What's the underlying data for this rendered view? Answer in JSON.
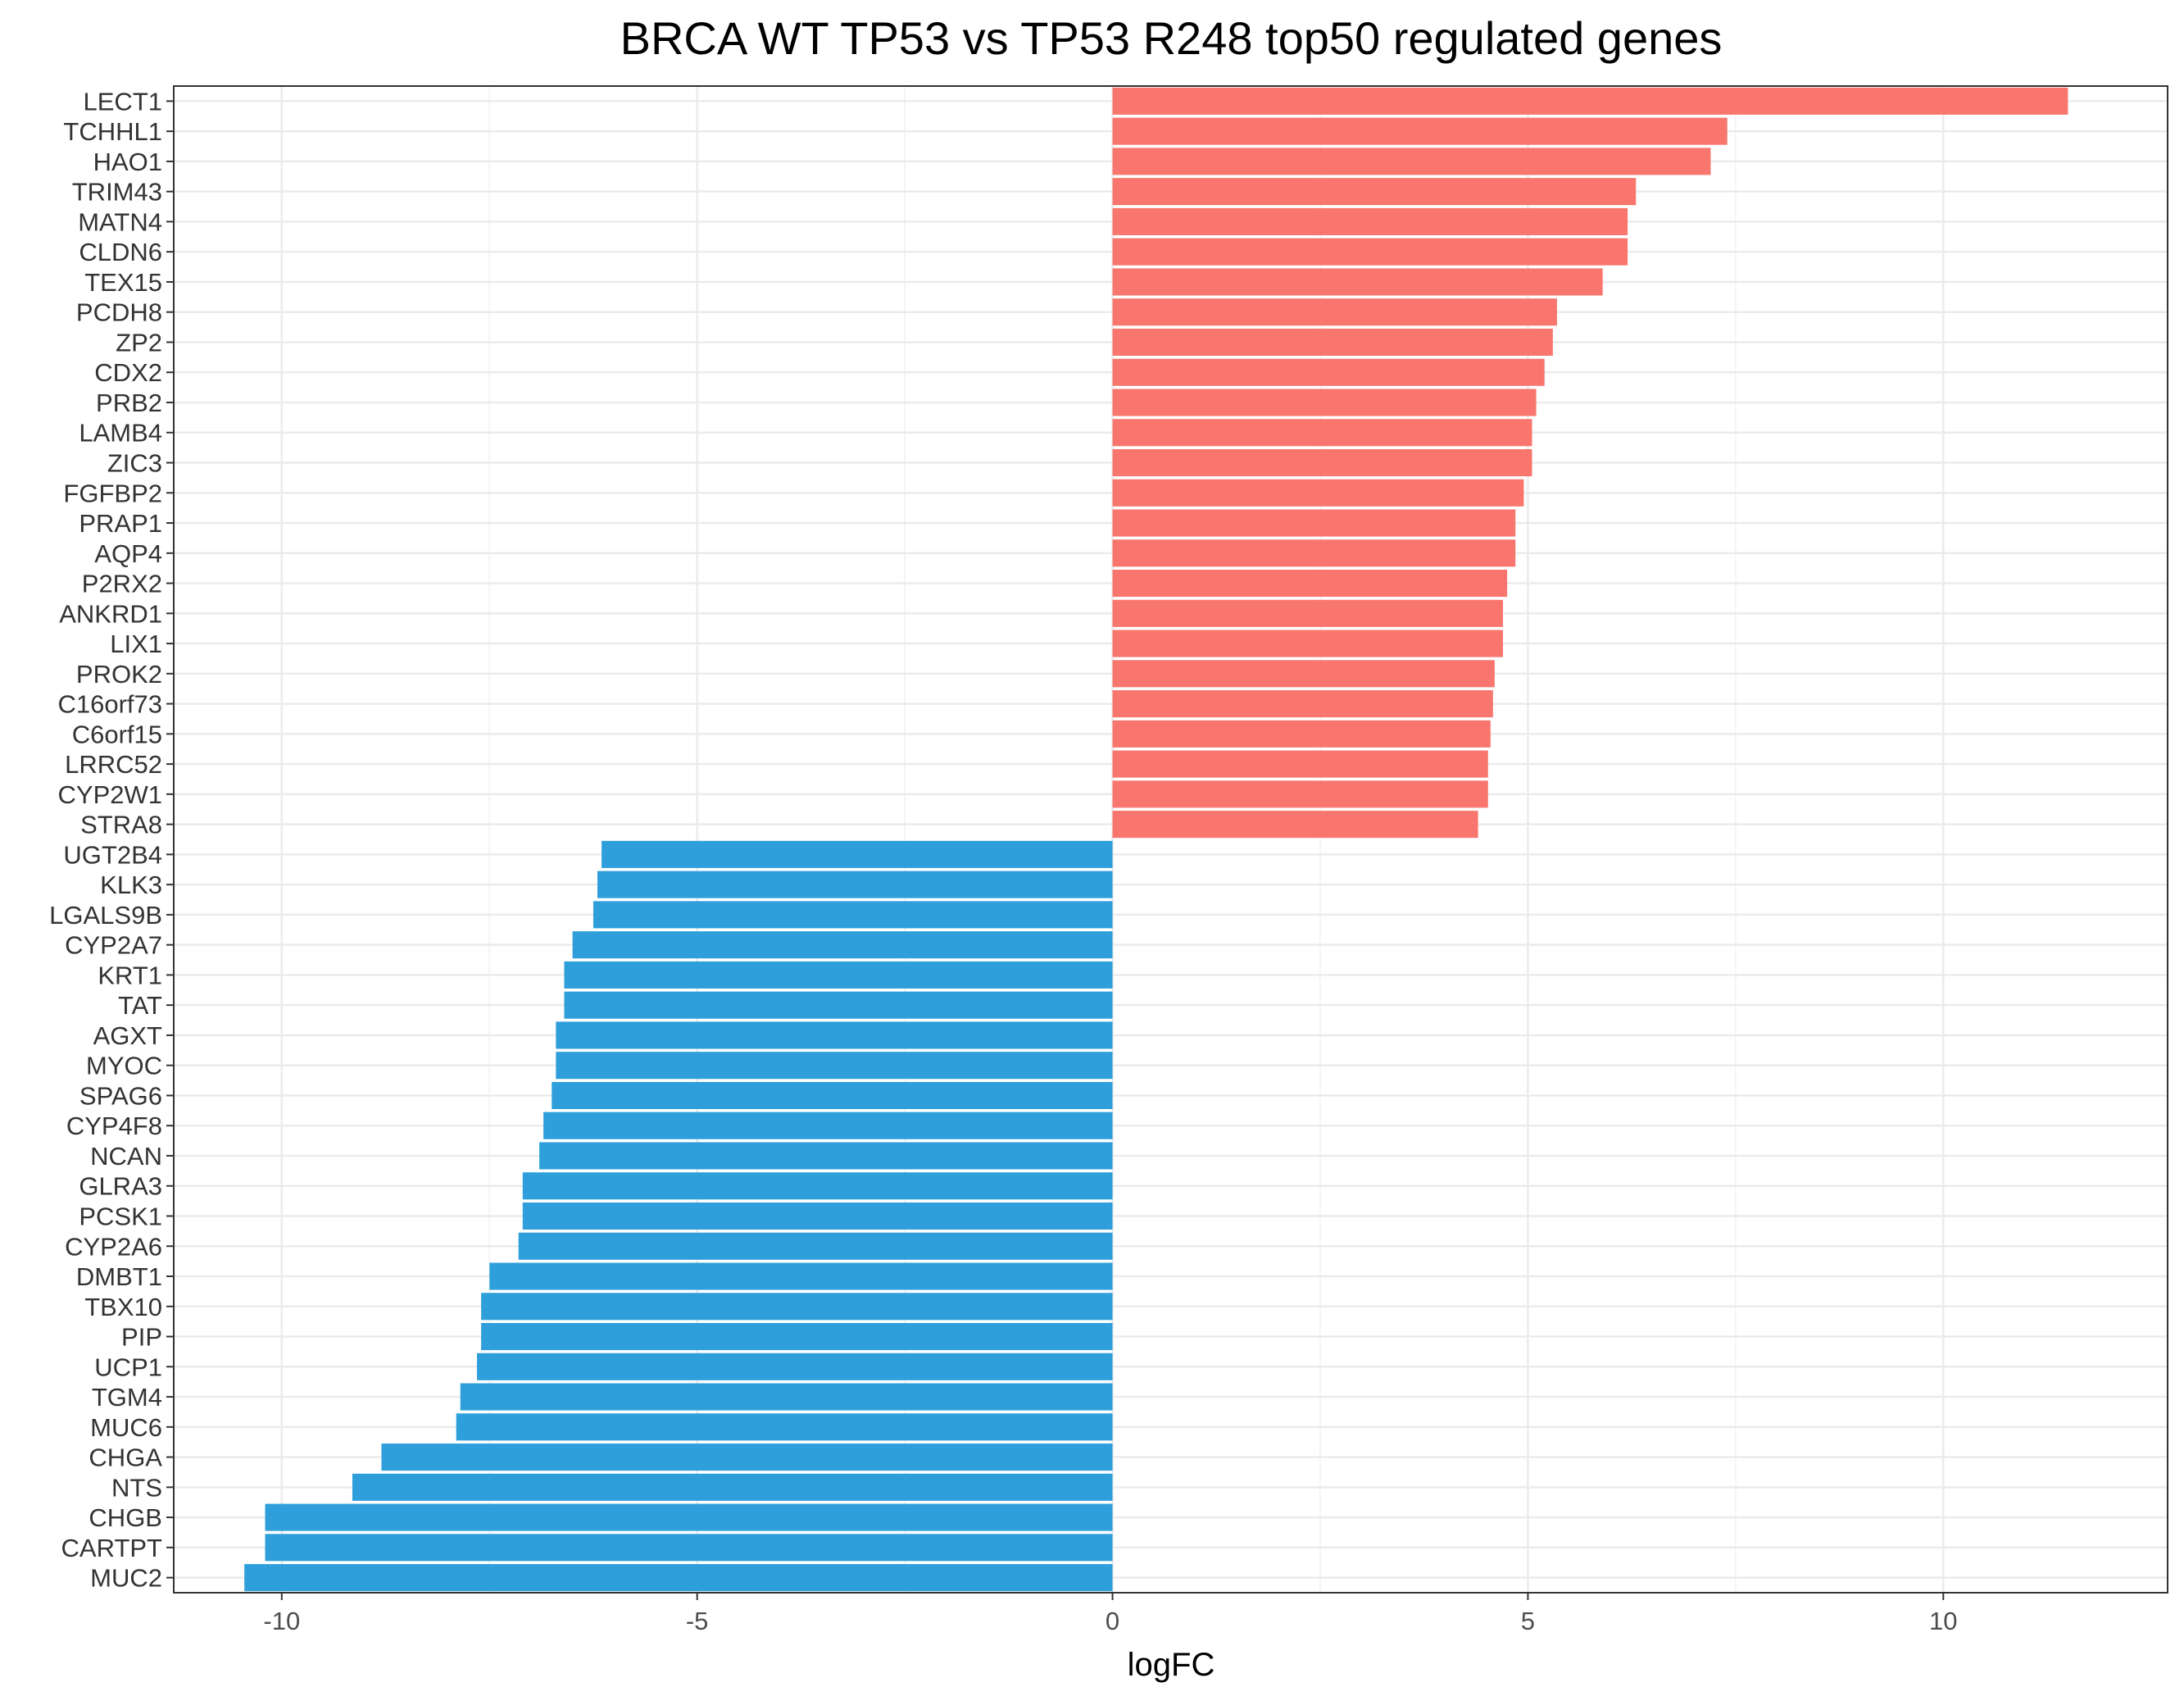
{
  "chart_data": {
    "type": "bar",
    "orientation": "horizontal",
    "title": "BRCA WT TP53 vs TP53 R248 top50 regulated genes",
    "xlabel": "logFC",
    "ylabel": "",
    "xlim": [
      -11.3,
      12.7
    ],
    "xticks": [
      -10,
      -5,
      0,
      5,
      10
    ],
    "xtick_labels": [
      "-10",
      "-5",
      "0",
      "5",
      "10"
    ],
    "grid": true,
    "legend": "none",
    "colors": {
      "up": "#f8766d",
      "down": "#2e9fdb"
    },
    "categories": [
      "LECT1",
      "TCHHL1",
      "HAO1",
      "TRIM43",
      "MATN4",
      "CLDN6",
      "TEX15",
      "PCDH8",
      "ZP2",
      "CDX2",
      "PRB2",
      "LAMB4",
      "ZIC3",
      "FGFBP2",
      "PRAP1",
      "AQP4",
      "P2RX2",
      "ANKRD1",
      "LIX1",
      "PROK2",
      "C16orf73",
      "C6orf15",
      "LRRC52",
      "CYP2W1",
      "STRA8",
      "UGT2B4",
      "KLK3",
      "LGALS9B",
      "CYP2A7",
      "KRT1",
      "TAT",
      "AGXT",
      "MYOC",
      "SPAG6",
      "CYP4F8",
      "NCAN",
      "GLRA3",
      "PCSK1",
      "CYP2A6",
      "DMBT1",
      "TBX10",
      "PIP",
      "UCP1",
      "TGM4",
      "MUC6",
      "CHGA",
      "NTS",
      "CHGB",
      "CARTPT",
      "MUC2"
    ],
    "values": [
      11.5,
      7.4,
      7.2,
      6.3,
      6.2,
      6.2,
      5.9,
      5.35,
      5.3,
      5.2,
      5.1,
      5.05,
      5.05,
      4.95,
      4.85,
      4.85,
      4.75,
      4.7,
      4.7,
      4.6,
      4.58,
      4.55,
      4.52,
      4.52,
      4.4,
      -6.15,
      -6.2,
      -6.25,
      -6.5,
      -6.6,
      -6.6,
      -6.7,
      -6.7,
      -6.75,
      -6.85,
      -6.9,
      -7.1,
      -7.1,
      -7.15,
      -7.5,
      -7.6,
      -7.6,
      -7.65,
      -7.85,
      -7.9,
      -8.8,
      -9.15,
      -10.2,
      -10.2,
      -10.45
    ]
  }
}
